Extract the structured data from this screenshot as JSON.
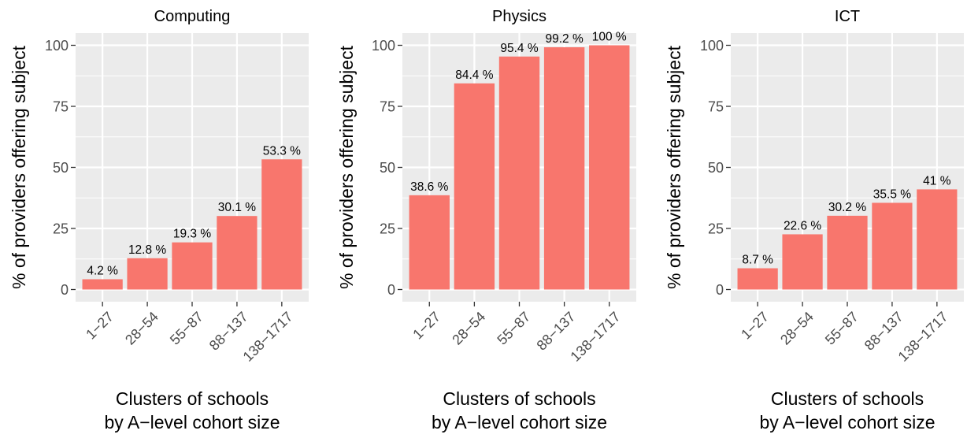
{
  "colors": {
    "bar": "#F8766D",
    "panel_bg": "#EBEBEB",
    "grid_major": "#FFFFFF",
    "text": "#000000",
    "tick_text": "#4D4D4D",
    "tick_mark": "#333333"
  },
  "chart_data": [
    {
      "type": "bar",
      "title": "Computing",
      "xlabel": "Clusters of schools\nby A−level cohort size",
      "ylabel": "% of providers offering subject",
      "categories": [
        "1−27",
        "28−54",
        "55−87",
        "88−137",
        "138−1717"
      ],
      "values": [
        4.2,
        12.8,
        19.3,
        30.1,
        53.3
      ],
      "value_labels": [
        "4.2 %",
        "12.8 %",
        "19.3 %",
        "30.1 %",
        "53.3 %"
      ],
      "ylim": [
        -5,
        105
      ],
      "yticks": [
        0,
        25,
        50,
        75,
        100
      ],
      "ytick_labels": [
        "0",
        "25",
        "50",
        "75",
        "100"
      ],
      "grid": true,
      "legend": "none"
    },
    {
      "type": "bar",
      "title": "Physics",
      "xlabel": "Clusters of schools\nby A−level cohort size",
      "ylabel": "% of providers offering subject",
      "categories": [
        "1−27",
        "28−54",
        "55−87",
        "88−137",
        "138−1717"
      ],
      "values": [
        38.6,
        84.4,
        95.4,
        99.2,
        100
      ],
      "value_labels": [
        "38.6 %",
        "84.4 %",
        "95.4 %",
        "99.2 %",
        "100 %"
      ],
      "ylim": [
        -5,
        105
      ],
      "yticks": [
        0,
        25,
        50,
        75,
        100
      ],
      "ytick_labels": [
        "0",
        "25",
        "50",
        "75",
        "100"
      ],
      "grid": true,
      "legend": "none"
    },
    {
      "type": "bar",
      "title": "ICT",
      "xlabel": "Clusters of schools\nby A−level cohort size",
      "ylabel": "% of providers offering subject",
      "categories": [
        "1−27",
        "28−54",
        "55−87",
        "88−137",
        "138−1717"
      ],
      "values": [
        8.7,
        22.6,
        30.2,
        35.5,
        41
      ],
      "value_labels": [
        "8.7 %",
        "22.6 %",
        "30.2 %",
        "35.5 %",
        "41 %"
      ],
      "ylim": [
        -5,
        105
      ],
      "yticks": [
        0,
        25,
        50,
        75,
        100
      ],
      "ytick_labels": [
        "0",
        "25",
        "50",
        "75",
        "100"
      ],
      "grid": true,
      "legend": "none"
    }
  ]
}
